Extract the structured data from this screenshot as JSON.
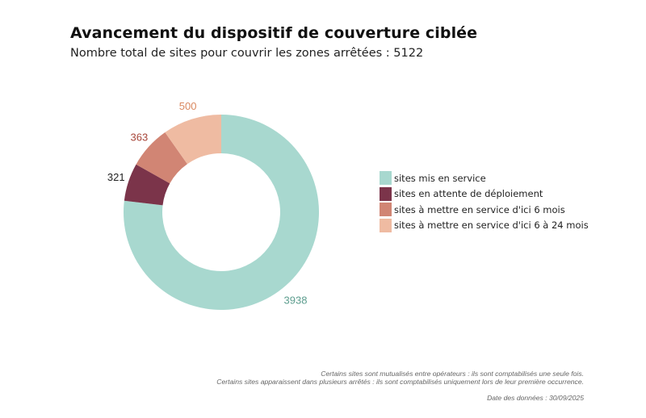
{
  "header": {
    "title": "Avancement du dispositif de couverture ciblée",
    "subtitle": "Nombre total de sites pour couvrir les zones arrêtées : 5122"
  },
  "chart_data": {
    "type": "pie",
    "variant": "donut",
    "title": "Avancement du dispositif de couverture ciblée",
    "subtitle": "Nombre total de sites pour couvrir les zones arrêtées : 5122",
    "categories": [
      "sites mis en service",
      "sites en attente de déploiement",
      "sites à mettre en service d'ici 6 mois",
      "sites à mettre en service d'ici 6 à 24 mois"
    ],
    "values": [
      3938,
      321,
      363,
      500
    ],
    "colors": [
      "#a8d8cf",
      "#7b344a",
      "#d18574",
      "#efbba2"
    ],
    "label_colors": [
      "#5e9e8f",
      "#222222",
      "#a8473b",
      "#d9885f"
    ],
    "start_angle": "12 o'clock",
    "direction": "clockwise",
    "legend_position": "right"
  },
  "legend": {
    "items": [
      {
        "label": "sites mis en service",
        "color": "#a8d8cf"
      },
      {
        "label": "sites en attente de déploiement",
        "color": "#7b344a"
      },
      {
        "label": "sites à mettre en service d'ici 6 mois",
        "color": "#d18574"
      },
      {
        "label": "sites à mettre en service d'ici 6 à 24 mois",
        "color": "#efbba2"
      }
    ]
  },
  "notes": {
    "line1": "Certains sites sont mutualisés entre opérateurs : ils sont comptabilisés une seule fois.",
    "line2": "Certains sites apparaissent dans plusieurs arrêtés : ils sont comptabilisés uniquement lors de leur première occurrence.",
    "date": "Date des données : 30/09/2025"
  }
}
